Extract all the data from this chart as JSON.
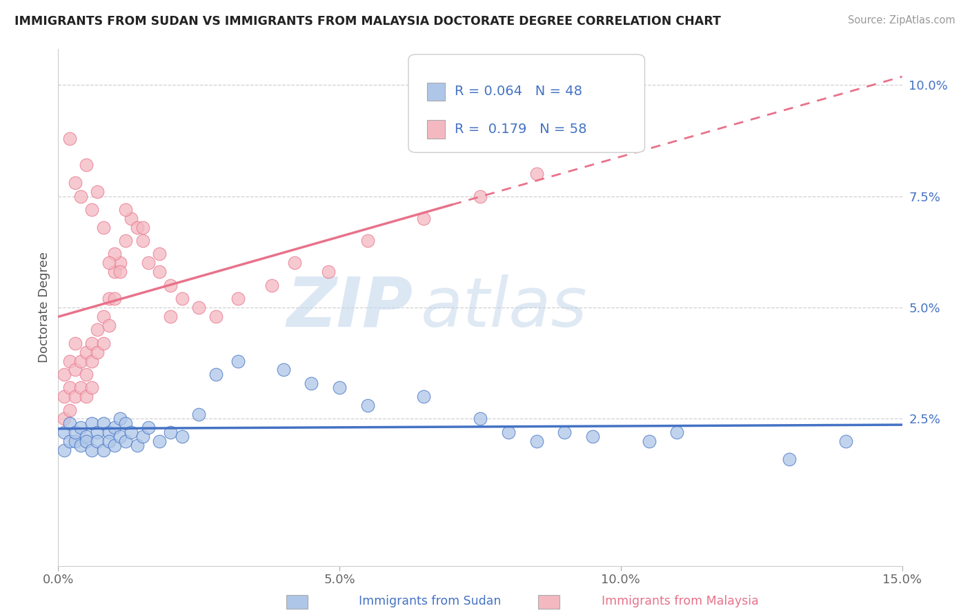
{
  "title": "IMMIGRANTS FROM SUDAN VS IMMIGRANTS FROM MALAYSIA DOCTORATE DEGREE CORRELATION CHART",
  "source": "Source: ZipAtlas.com",
  "ylabel": "Doctorate Degree",
  "xlabel_sudan": "Immigrants from Sudan",
  "xlabel_malaysia": "Immigrants from Malaysia",
  "xlim": [
    0.0,
    0.15
  ],
  "ylim": [
    -0.008,
    0.108
  ],
  "xticks": [
    0.0,
    0.05,
    0.1,
    0.15
  ],
  "xtick_labels": [
    "0.0%",
    "5.0%",
    "10.0%",
    "15.0%"
  ],
  "ytick_labels_right": [
    "2.5%",
    "5.0%",
    "7.5%",
    "10.0%"
  ],
  "ytick_vals_right": [
    0.025,
    0.05,
    0.075,
    0.1
  ],
  "R_sudan": 0.064,
  "N_sudan": 48,
  "R_malaysia": 0.179,
  "N_malaysia": 58,
  "color_sudan": "#aec6e8",
  "color_malaysia": "#f4b8c1",
  "color_sudan_line": "#4472c4",
  "color_malaysia_line": "#e8728a",
  "color_text_blue": "#4472c4",
  "sudan_x": [
    0.001,
    0.001,
    0.002,
    0.002,
    0.003,
    0.003,
    0.004,
    0.004,
    0.005,
    0.005,
    0.006,
    0.006,
    0.007,
    0.007,
    0.008,
    0.008,
    0.009,
    0.009,
    0.01,
    0.01,
    0.011,
    0.011,
    0.012,
    0.012,
    0.013,
    0.014,
    0.015,
    0.016,
    0.018,
    0.02,
    0.022,
    0.025,
    0.028,
    0.032,
    0.04,
    0.045,
    0.05,
    0.055,
    0.065,
    0.075,
    0.08,
    0.085,
    0.09,
    0.095,
    0.105,
    0.11,
    0.13,
    0.14
  ],
  "sudan_y": [
    0.022,
    0.018,
    0.02,
    0.024,
    0.02,
    0.022,
    0.023,
    0.019,
    0.021,
    0.02,
    0.024,
    0.018,
    0.022,
    0.02,
    0.024,
    0.018,
    0.022,
    0.02,
    0.023,
    0.019,
    0.025,
    0.021,
    0.024,
    0.02,
    0.022,
    0.019,
    0.021,
    0.023,
    0.02,
    0.022,
    0.021,
    0.026,
    0.035,
    0.038,
    0.036,
    0.033,
    0.032,
    0.028,
    0.03,
    0.025,
    0.022,
    0.02,
    0.022,
    0.021,
    0.02,
    0.022,
    0.016,
    0.02
  ],
  "malaysia_x": [
    0.001,
    0.001,
    0.001,
    0.002,
    0.002,
    0.002,
    0.003,
    0.003,
    0.003,
    0.004,
    0.004,
    0.005,
    0.005,
    0.005,
    0.006,
    0.006,
    0.006,
    0.007,
    0.007,
    0.008,
    0.008,
    0.009,
    0.009,
    0.01,
    0.01,
    0.011,
    0.012,
    0.013,
    0.014,
    0.015,
    0.016,
    0.018,
    0.02,
    0.022,
    0.025,
    0.028,
    0.032,
    0.038,
    0.042,
    0.048,
    0.055,
    0.065,
    0.075,
    0.085,
    0.012,
    0.015,
    0.018,
    0.02,
    0.01,
    0.008,
    0.006,
    0.004,
    0.002,
    0.003,
    0.005,
    0.007,
    0.009,
    0.011
  ],
  "malaysia_y": [
    0.035,
    0.03,
    0.025,
    0.038,
    0.032,
    0.027,
    0.042,
    0.036,
    0.03,
    0.038,
    0.032,
    0.04,
    0.035,
    0.03,
    0.042,
    0.038,
    0.032,
    0.045,
    0.04,
    0.048,
    0.042,
    0.052,
    0.046,
    0.058,
    0.052,
    0.06,
    0.065,
    0.07,
    0.068,
    0.065,
    0.06,
    0.058,
    0.048,
    0.052,
    0.05,
    0.048,
    0.052,
    0.055,
    0.06,
    0.058,
    0.065,
    0.07,
    0.075,
    0.08,
    0.072,
    0.068,
    0.062,
    0.055,
    0.062,
    0.068,
    0.072,
    0.075,
    0.088,
    0.078,
    0.082,
    0.076,
    0.06,
    0.058
  ],
  "watermark_zip": "ZIP",
  "watermark_atlas": "atlas",
  "background_color": "#ffffff",
  "grid_color": "#d0d0d0",
  "trend_solid_end": 0.07,
  "trend_dashed_start": 0.07
}
